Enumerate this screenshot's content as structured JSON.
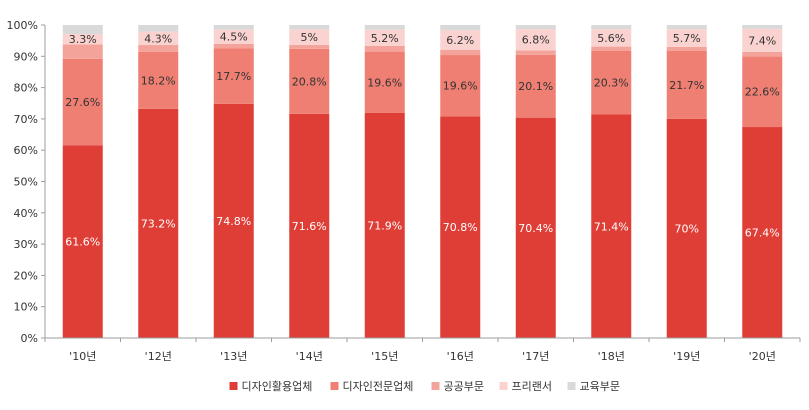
{
  "chart_data": {
    "type": "bar",
    "stacked": true,
    "categories": [
      "'10년",
      "'12년",
      "'13년",
      "'14년",
      "'15년",
      "'16년",
      "'17년",
      "'18년",
      "'19년",
      "'20년"
    ],
    "series": [
      {
        "name": "디자인활용업체",
        "color": "#df3e36",
        "values": [
          61.6,
          73.2,
          74.8,
          71.6,
          71.9,
          70.8,
          70.4,
          71.4,
          70,
          67.4
        ],
        "labels": [
          "61.6%",
          "73.2%",
          "74.8%",
          "71.6%",
          "71.9%",
          "70.8%",
          "70.4%",
          "71.4%",
          "70%",
          "67.4%"
        ]
      },
      {
        "name": "디자인전문업체",
        "color": "#ef7f73",
        "values": [
          27.6,
          18.2,
          17.7,
          20.8,
          19.6,
          19.6,
          20.1,
          20.3,
          21.7,
          22.6
        ],
        "labels": [
          "27.6%",
          "18.2%",
          "17.7%",
          "20.8%",
          "19.6%",
          "19.6%",
          "20.1%",
          "20.3%",
          "21.7%",
          "22.6%"
        ]
      },
      {
        "name": "공공부문",
        "color": "#f4a39b",
        "values": [
          4.6,
          2.2,
          1.5,
          1.2,
          1.8,
          1.7,
          1.4,
          1.4,
          1.3,
          1.4
        ],
        "labels": [
          "",
          "",
          "",
          "",
          "",
          "",
          "",
          "",
          "",
          ""
        ]
      },
      {
        "name": "프리랜서",
        "color": "#fad3d0",
        "values": [
          3.3,
          4.3,
          4.5,
          5,
          5.2,
          6.2,
          6.8,
          5.6,
          5.7,
          7.4
        ],
        "labels": [
          "3.3%",
          "4.3%",
          "4.5%",
          "5%",
          "5.2%",
          "6.2%",
          "6.8%",
          "5.6%",
          "5.7%",
          "7.4%"
        ]
      },
      {
        "name": "교육부문",
        "color": "#d9d9d9",
        "values": [
          2.9,
          2.1,
          1.5,
          1.4,
          1.5,
          1.7,
          1.3,
          1.3,
          1.3,
          1.2
        ],
        "labels": [
          "",
          "",
          "",
          "",
          "",
          "",
          "",
          "",
          "",
          ""
        ]
      }
    ],
    "ylim": [
      0,
      100
    ],
    "yticks": [
      "0%",
      "10%",
      "20%",
      "30%",
      "40%",
      "50%",
      "60%",
      "70%",
      "80%",
      "90%",
      "100%"
    ],
    "legend_position": "bottom",
    "grid": false
  }
}
